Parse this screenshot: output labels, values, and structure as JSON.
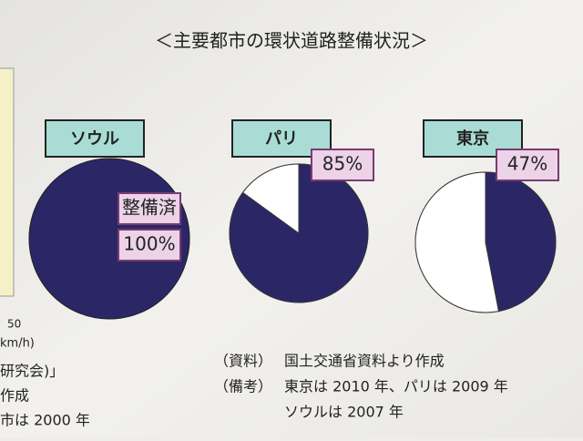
{
  "page": {
    "title": "＜主要都市の環状道路整備状況＞",
    "notes": [
      [
        "（資料）",
        "国土交通省資料より作成"
      ],
      [
        "（備考）",
        "東京は 2010 年、パリは 2009 年"
      ],
      [
        "",
        "ソウルは 2007 年"
      ]
    ],
    "fragments": [
      "50",
      "km/h)",
      "研究会)」",
      "作成",
      "市は 2000 年"
    ]
  },
  "chart_data": [
    {
      "type": "pie",
      "title": "ソウル",
      "categories": [
        "整備済"
      ],
      "values": [
        100
      ],
      "value_labels": [
        "100%"
      ],
      "colors": [
        "#2b2766"
      ]
    },
    {
      "type": "pie",
      "title": "パリ",
      "categories": [
        null,
        null
      ],
      "values": [
        85,
        15
      ],
      "value_labels": [
        "85%",
        null
      ],
      "colors": [
        "#2b2766",
        "#ffffff"
      ]
    },
    {
      "type": "pie",
      "title": "東京",
      "categories": [
        null,
        null
      ],
      "values": [
        47,
        53
      ],
      "value_labels": [
        "47%",
        null
      ],
      "colors": [
        "#2b2766",
        "#ffffff"
      ]
    }
  ]
}
